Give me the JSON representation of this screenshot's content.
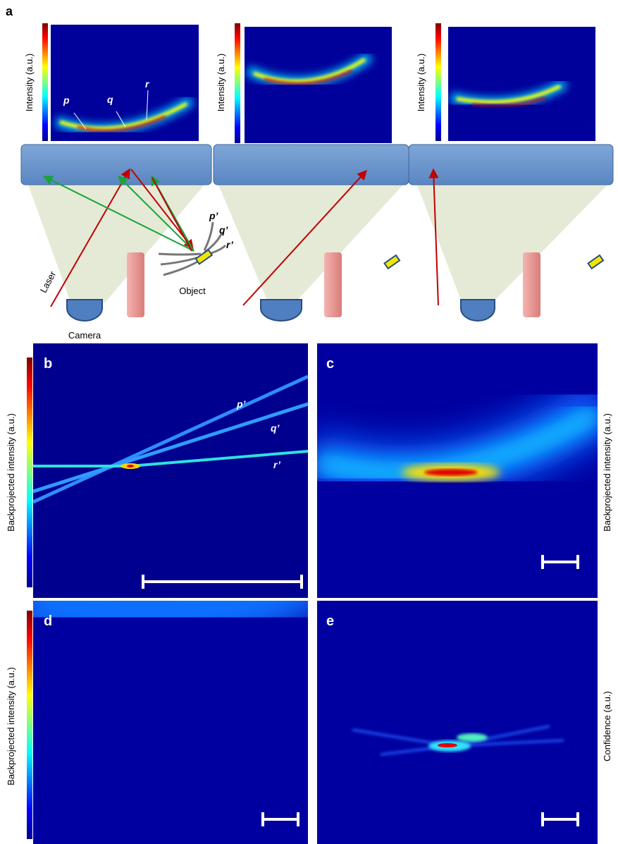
{
  "panel_a": {
    "label": "a",
    "intensity_panels": [
      {
        "axis_label": "Intensity (a.u.)",
        "points": [
          "p",
          "q",
          "r"
        ]
      },
      {
        "axis_label": "Intensity (a.u.)"
      },
      {
        "axis_label": "Intensity (a.u.)"
      }
    ],
    "object_paths": [
      "p’",
      "q’",
      "r’"
    ],
    "laser": "Laser",
    "object": "Object",
    "camera": "Camera"
  },
  "panels": [
    {
      "label": "b",
      "colorbar_label": "Backprojected intensity (a.u.)",
      "paths": [
        "p’",
        "q’",
        "r’"
      ]
    },
    {
      "label": "c",
      "colorbar_label": "Backprojected intensity (a.u.)"
    },
    {
      "label": "d",
      "colorbar_label": "Backprojected intensity (a.u.)"
    },
    {
      "label": "e",
      "colorbar_label": "Confidence (a.u.)"
    }
  ]
}
